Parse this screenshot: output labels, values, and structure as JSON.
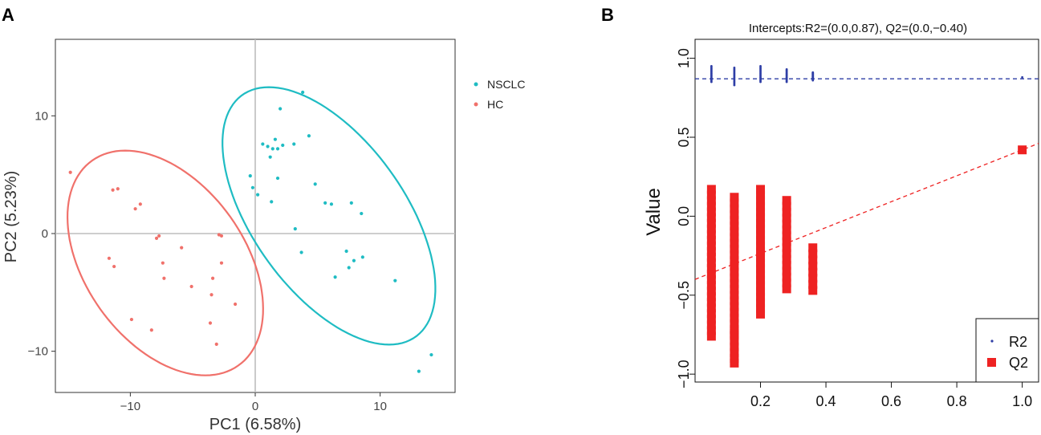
{
  "chart_data": [
    {
      "panel_label": "A",
      "type": "scatter",
      "xlabel": "PC1 (6.58%)",
      "ylabel": "PC2 (5.23%)",
      "xlim": [
        -16,
        16
      ],
      "ylim": [
        -13.5,
        16.5
      ],
      "xticks": [
        -10,
        0,
        10
      ],
      "xtick_labels": [
        "−10",
        "0",
        "10"
      ],
      "yticks": [
        -10,
        0,
        10
      ],
      "ytick_labels": [
        "−10",
        "0",
        "10"
      ],
      "grid": false,
      "legend_position": "right",
      "series": [
        {
          "name": "NSCLC",
          "color": "#1fbcc3",
          "points": [
            [
              3.8,
              12
            ],
            [
              2,
              10.6
            ],
            [
              1.6,
              8
            ],
            [
              4.3,
              8.3
            ],
            [
              0.6,
              7.6
            ],
            [
              1,
              7.4
            ],
            [
              1.4,
              7.2
            ],
            [
              1.8,
              7.2
            ],
            [
              3.1,
              7.6
            ],
            [
              1.2,
              6.5
            ],
            [
              2.2,
              7.5
            ],
            [
              -0.4,
              4.9
            ],
            [
              -0.2,
              3.9
            ],
            [
              0.2,
              3.3
            ],
            [
              1.3,
              2.7
            ],
            [
              1.8,
              4.7
            ],
            [
              4.8,
              4.2
            ],
            [
              5.6,
              2.6
            ],
            [
              6.1,
              2.5
            ],
            [
              7.7,
              2.6
            ],
            [
              8.5,
              1.7
            ],
            [
              3.2,
              0.4
            ],
            [
              3.7,
              -1.6
            ],
            [
              7.3,
              -1.5
            ],
            [
              7.9,
              -2.3
            ],
            [
              8.6,
              -2
            ],
            [
              7.5,
              -2.9
            ],
            [
              6.4,
              -3.7
            ],
            [
              11.2,
              -4
            ],
            [
              14.1,
              -10.3
            ],
            [
              13.1,
              -11.7
            ]
          ],
          "ellipse": {
            "center": [
              5.9,
              1.5
            ],
            "semi_axes": [
              12.4,
              6.2
            ],
            "angle_deg": -57
          }
        },
        {
          "name": "HC",
          "color": "#f0716b",
          "points": [
            [
              -14.8,
              5.2
            ],
            [
              -11.4,
              3.7
            ],
            [
              -11,
              3.8
            ],
            [
              -9.2,
              2.5
            ],
            [
              -9.6,
              2.1
            ],
            [
              -7.7,
              -0.2
            ],
            [
              -7.9,
              -0.4
            ],
            [
              -2.9,
              -0.1
            ],
            [
              -2.7,
              -0.2
            ],
            [
              -5.9,
              -1.2
            ],
            [
              -11.7,
              -2.1
            ],
            [
              -11.3,
              -2.8
            ],
            [
              -7.4,
              -2.5
            ],
            [
              -2.7,
              -2.5
            ],
            [
              -7.3,
              -3.8
            ],
            [
              -3.4,
              -3.8
            ],
            [
              -5.1,
              -4.5
            ],
            [
              -3.5,
              -5.2
            ],
            [
              -1.6,
              -6
            ],
            [
              -9.9,
              -7.3
            ],
            [
              -8.3,
              -8.2
            ],
            [
              -3.6,
              -7.6
            ],
            [
              -3.1,
              -9.4
            ]
          ],
          "ellipse": {
            "center": [
              -7.2,
              -2.5
            ],
            "semi_axes": [
              10.5,
              6.5
            ],
            "angle_deg": -58
          }
        }
      ]
    },
    {
      "panel_label": "B",
      "type": "scatter",
      "title": "Intercepts:R2=(0.0,0.87), Q2=(0.0,−0.40)",
      "xlabel": "",
      "ylabel": "Value",
      "xlim": [
        0,
        1.05
      ],
      "ylim": [
        -1.05,
        1.12
      ],
      "xticks": [
        0.2,
        0.4,
        0.6,
        0.8,
        1.0
      ],
      "xtick_labels": [
        "0.2",
        "0.4",
        "0.6",
        "0.8",
        "1.0"
      ],
      "yticks": [
        -1.0,
        -0.5,
        0.0,
        0.5,
        1.0
      ],
      "ytick_labels": [
        "−1.0",
        "−0.5",
        "0.0",
        "0.5",
        "1.0"
      ],
      "grid": false,
      "legend_position": "bottom-right",
      "series": [
        {
          "name": "R2",
          "color": "#2e3ea6",
          "marker": "dot",
          "x_groups": [
            0.05,
            0.12,
            0.2,
            0.28,
            0.36,
            1.0
          ],
          "y_ranges": [
            [
              0.85,
              0.95
            ],
            [
              0.83,
              0.94
            ],
            [
              0.85,
              0.95
            ],
            [
              0.85,
              0.93
            ],
            [
              0.86,
              0.91
            ],
            [
              0.88,
              0.88
            ]
          ],
          "regression_line": {
            "intercept": 0.87,
            "slope": 0.0
          }
        },
        {
          "name": "Q2",
          "color": "#ee2222",
          "marker": "square",
          "x_groups": [
            0.05,
            0.12,
            0.2,
            0.28,
            0.36
          ],
          "y_ranges": [
            [
              -0.76,
              0.17
            ],
            [
              -0.9,
              0.12
            ],
            [
              -0.62,
              0.17
            ],
            [
              -0.46,
              0.1
            ],
            [
              -0.47,
              -0.2
            ]
          ],
          "extra_points": [
            [
              1.0,
              0.42
            ],
            [
              0.12,
              -0.74
            ],
            [
              0.12,
              -0.93
            ]
          ],
          "regression_line": {
            "intercept": -0.4,
            "slope": 0.82
          }
        }
      ]
    }
  ]
}
